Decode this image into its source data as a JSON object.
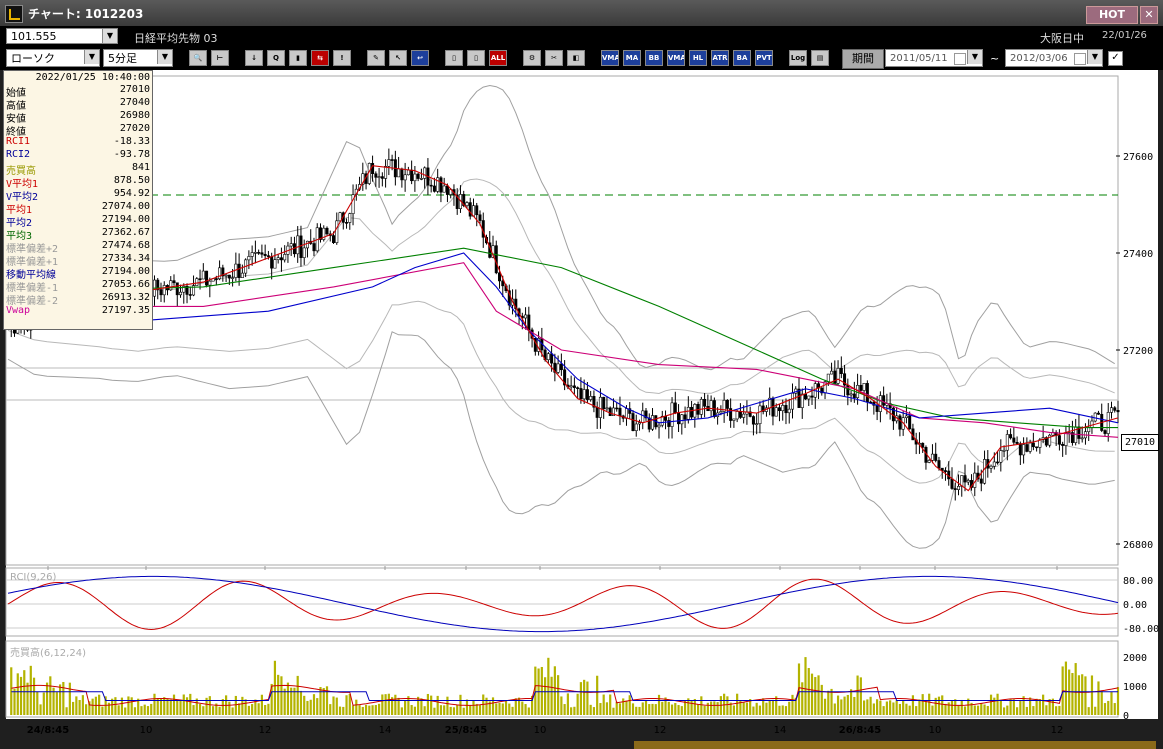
{
  "window": {
    "title": "チャート: 1012203",
    "hot_label": "HOT"
  },
  "header": {
    "code": "101.555",
    "instrument": "日経平均先物 03",
    "session": "大阪日中",
    "date": "22/01/26"
  },
  "toolbar": {
    "chart_type": "ローソク",
    "interval": "5分足",
    "period_label": "期間",
    "date_from": "2011/05/11",
    "date_to": "2012/03/06",
    "range_sep": "~",
    "buttons": [
      "MA",
      "BB",
      "VMA",
      "HL",
      "ATR",
      "ALL",
      "PVT",
      "Log"
    ]
  },
  "info_panel": {
    "datetime": "2022/01/25  10:40:00",
    "rows": [
      {
        "label": "始値",
        "value": "27010",
        "color": "#000000"
      },
      {
        "label": "高値",
        "value": "27040",
        "color": "#000000"
      },
      {
        "label": "安値",
        "value": "26980",
        "color": "#000000"
      },
      {
        "label": "終値",
        "value": "27020",
        "color": "#000000"
      },
      {
        "label": "RCI1",
        "value": "-18.33",
        "color": "#cc0000"
      },
      {
        "label": "RCI2",
        "value": "-93.78",
        "color": "#000099"
      },
      {
        "label": "売買高",
        "value": "841",
        "color": "#999900"
      },
      {
        "label": "V平均1",
        "value": "878.50",
        "color": "#cc0000"
      },
      {
        "label": "V平均2",
        "value": "954.92",
        "color": "#000099"
      },
      {
        "label": "平均1",
        "value": "27074.00",
        "color": "#cc0000"
      },
      {
        "label": "平均2",
        "value": "27194.00",
        "color": "#000099"
      },
      {
        "label": "平均3",
        "value": "27362.67",
        "color": "#006600"
      },
      {
        "label": "標準偏差+2",
        "value": "27474.68",
        "color": "#999999"
      },
      {
        "label": "標準偏差+1",
        "value": "27334.34",
        "color": "#999999"
      },
      {
        "label": "移動平均線",
        "value": "27194.00",
        "color": "#000099"
      },
      {
        "label": "標準偏差-1",
        "value": "27053.66",
        "color": "#999999"
      },
      {
        "label": "標準偏差-2",
        "value": "26913.32",
        "color": "#999999"
      },
      {
        "label": "Vwap",
        "value": "27197.35",
        "color": "#cc0099"
      }
    ]
  },
  "last_price": "27010",
  "panels": {
    "rci_label": "RCI(9,26)",
    "volume_label": "売買高(6,12,24)"
  },
  "chart_data": [
    {
      "type": "candlestick",
      "price_axis_ticks": [
        "27600",
        "27400",
        "27200",
        "26800"
      ],
      "price_axis_range": [
        26800,
        27700
      ],
      "x_tick_labels": [
        "24/8:45",
        "10",
        "12",
        "14",
        "25/8:45",
        "10",
        "12",
        "14",
        "26/8:45",
        "10",
        "12"
      ],
      "series_colors": {
        "ma1": "#cc0000",
        "ma2": "#0000cc",
        "ma3": "#008000",
        "vwap": "#cc0077",
        "bands": "#a0a0a0",
        "dash": "#008000"
      },
      "ma2_points": [
        [
          0,
          27300
        ],
        [
          40,
          27260
        ],
        [
          80,
          27280
        ],
        [
          112,
          27330
        ],
        [
          125,
          27370
        ],
        [
          140,
          27400
        ],
        [
          150,
          27330
        ],
        [
          160,
          27240
        ],
        [
          175,
          27140
        ],
        [
          190,
          27080
        ],
        [
          200,
          27050
        ],
        [
          215,
          27060
        ],
        [
          230,
          27090
        ],
        [
          245,
          27120
        ],
        [
          260,
          27100
        ],
        [
          280,
          27060
        ],
        [
          300,
          27070
        ],
        [
          320,
          27080
        ],
        [
          341,
          27050
        ]
      ],
      "ma3_points": [
        [
          0,
          27320
        ],
        [
          60,
          27330
        ],
        [
          100,
          27370
        ],
        [
          140,
          27410
        ],
        [
          170,
          27370
        ],
        [
          200,
          27290
        ],
        [
          230,
          27200
        ],
        [
          250,
          27140
        ],
        [
          270,
          27090
        ],
        [
          290,
          27060
        ],
        [
          310,
          27050
        ],
        [
          330,
          27040
        ],
        [
          341,
          27040
        ]
      ],
      "vwap_points": [
        [
          0,
          27290
        ],
        [
          60,
          27290
        ],
        [
          100,
          27330
        ],
        [
          140,
          27380
        ],
        [
          150,
          27280
        ],
        [
          170,
          27200
        ],
        [
          200,
          27170
        ],
        [
          230,
          27160
        ],
        [
          245,
          27140
        ],
        [
          260,
          27120
        ],
        [
          280,
          27060
        ],
        [
          300,
          27050
        ],
        [
          320,
          27030
        ],
        [
          341,
          27020
        ]
      ],
      "ma1_points": [
        [
          0,
          27250
        ],
        [
          20,
          27290
        ],
        [
          40,
          27320
        ],
        [
          60,
          27340
        ],
        [
          80,
          27390
        ],
        [
          100,
          27440
        ],
        [
          112,
          27580
        ],
        [
          125,
          27570
        ],
        [
          135,
          27540
        ],
        [
          145,
          27460
        ],
        [
          155,
          27300
        ],
        [
          165,
          27180
        ],
        [
          175,
          27100
        ],
        [
          185,
          27070
        ],
        [
          195,
          27050
        ],
        [
          205,
          27070
        ],
        [
          215,
          27080
        ],
        [
          230,
          27070
        ],
        [
          245,
          27110
        ],
        [
          255,
          27140
        ],
        [
          265,
          27100
        ],
        [
          275,
          27050
        ],
        [
          285,
          26960
        ],
        [
          295,
          26910
        ],
        [
          305,
          27000
        ],
        [
          315,
          27010
        ],
        [
          325,
          27030
        ],
        [
          341,
          27060
        ]
      ]
    },
    {
      "type": "line",
      "name": "RCI",
      "y_ticks": [
        "80.00",
        "0.00",
        "-80.00"
      ],
      "y_range": [
        -100,
        100
      ]
    },
    {
      "type": "bar",
      "name": "売買高",
      "y_ticks": [
        "2000",
        "1000",
        "0"
      ],
      "y_range": [
        0,
        2200
      ]
    }
  ]
}
